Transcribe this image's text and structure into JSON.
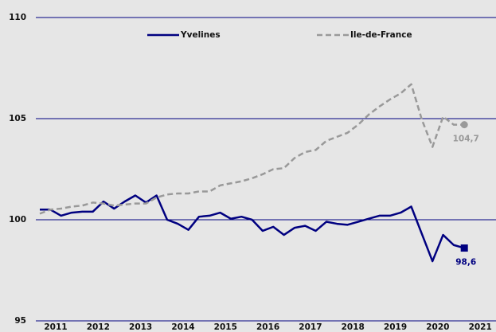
{
  "chart_data": {
    "type": "line",
    "categories": [
      null,
      "2011",
      null,
      null,
      null,
      "2012",
      null,
      null,
      null,
      "2013",
      null,
      null,
      null,
      "2014",
      null,
      null,
      null,
      "2015",
      null,
      null,
      null,
      "2016",
      null,
      null,
      null,
      "2017",
      null,
      null,
      null,
      "2018",
      null,
      null,
      null,
      "2019",
      null,
      null,
      null,
      "2020",
      null,
      null,
      null,
      "2021"
    ],
    "series": [
      {
        "name": "Yvelines",
        "color": "#000080",
        "dash": false,
        "marker": "square",
        "values": [
          100.5,
          100.5,
          100.2,
          100.35,
          100.4,
          100.4,
          100.9,
          100.55,
          100.9,
          101.2,
          100.85,
          101.2,
          100.0,
          99.8,
          99.5,
          100.15,
          100.2,
          100.35,
          100.05,
          100.15,
          100.0,
          99.45,
          99.65,
          99.25,
          99.6,
          99.7,
          99.45,
          99.9,
          99.8,
          99.75,
          99.9,
          100.05,
          100.2,
          100.2,
          100.35,
          100.65,
          99.3,
          97.95,
          99.25,
          98.75,
          98.6,
          null
        ],
        "value_labels": [
          null,
          null,
          null,
          null,
          null,
          null,
          null,
          null,
          null,
          null,
          null,
          null,
          null,
          null,
          null,
          null,
          null,
          null,
          null,
          null,
          null,
          null,
          null,
          null,
          null,
          null,
          null,
          null,
          null,
          null,
          null,
          null,
          null,
          null,
          null,
          null,
          null,
          null,
          null,
          null,
          "98,6",
          null
        ]
      },
      {
        "name": "Ile-de-France",
        "color": "#999999",
        "dash": true,
        "marker": "circle",
        "values": [
          100.3,
          100.5,
          100.55,
          100.65,
          100.7,
          100.85,
          100.8,
          100.7,
          100.75,
          100.8,
          100.8,
          101.1,
          101.25,
          101.3,
          101.3,
          101.4,
          101.4,
          101.7,
          101.8,
          101.9,
          102.05,
          102.25,
          102.5,
          102.55,
          103.05,
          103.35,
          103.45,
          103.9,
          104.1,
          104.3,
          104.7,
          105.2,
          105.6,
          105.95,
          106.25,
          106.7,
          104.95,
          103.6,
          105.1,
          104.7,
          104.7,
          null
        ],
        "value_labels": [
          null,
          null,
          null,
          null,
          null,
          null,
          null,
          null,
          null,
          null,
          null,
          null,
          null,
          null,
          null,
          null,
          null,
          null,
          null,
          null,
          null,
          null,
          null,
          null,
          null,
          null,
          null,
          null,
          null,
          null,
          null,
          null,
          null,
          null,
          null,
          null,
          null,
          null,
          null,
          null,
          "104,7",
          null
        ]
      }
    ],
    "ylim": [
      95,
      110
    ],
    "yticks": [
      95,
      100,
      105,
      110
    ],
    "grid": true,
    "legend": "top"
  }
}
